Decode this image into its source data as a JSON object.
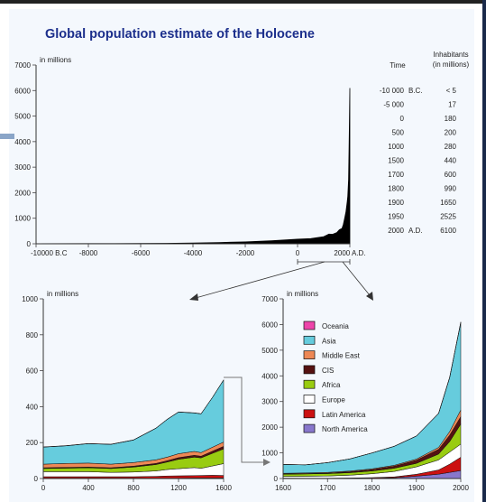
{
  "title": "Global population estimate of the Holocene",
  "table": {
    "time_header": "Time",
    "inhabitants_header": [
      "Inhabitants",
      "(in millions)"
    ],
    "rows": [
      {
        "time": "-10 000",
        "era": "B.C.",
        "value": "< 5"
      },
      {
        "time": "-5 000",
        "era": "",
        "value": "17"
      },
      {
        "time": "0",
        "era": "",
        "value": "180"
      },
      {
        "time": "500",
        "era": "",
        "value": "200"
      },
      {
        "time": "1000",
        "era": "",
        "value": "280"
      },
      {
        "time": "1500",
        "era": "",
        "value": "440"
      },
      {
        "time": "1700",
        "era": "",
        "value": "600"
      },
      {
        "time": "1800",
        "era": "",
        "value": "990"
      },
      {
        "time": "1900",
        "era": "",
        "value": "1650"
      },
      {
        "time": "1950",
        "era": "",
        "value": "2525"
      },
      {
        "time": "2000",
        "era": "A.D.",
        "value": "6100"
      }
    ]
  },
  "chart_data": [
    {
      "type": "area",
      "ylabel": "in millions",
      "ylim": [
        0,
        7000
      ],
      "xlim": [
        -10000,
        2000
      ],
      "yticks": [
        "0",
        "1000",
        "2000",
        "3000",
        "4000",
        "5000",
        "6000",
        "7000"
      ],
      "xticks": [
        "-10000 B.C",
        "-8000",
        "-6000",
        "-4000",
        "-2000",
        "0",
        "2000 A.D."
      ],
      "tick_values_x": [
        -10000,
        -8000,
        -6000,
        -4000,
        -2000,
        0,
        2000
      ],
      "tick_values_y": [
        0,
        1000,
        2000,
        3000,
        4000,
        5000,
        6000,
        7000
      ],
      "color": "#000000",
      "x": [
        -10000,
        -8000,
        -6000,
        -5000,
        -4000,
        -3000,
        -2000,
        -1000,
        0,
        500,
        1000,
        1200,
        1340,
        1500,
        1600,
        1700,
        1750,
        1800,
        1850,
        1900,
        1920,
        1940,
        1950,
        1960,
        1970,
        1980,
        1990,
        2000
      ],
      "values": [
        5,
        8,
        12,
        17,
        30,
        50,
        75,
        120,
        180,
        200,
        280,
        380,
        370,
        440,
        550,
        600,
        760,
        990,
        1260,
        1650,
        1860,
        2300,
        2525,
        3000,
        3700,
        4450,
        5300,
        6100
      ]
    },
    {
      "type": "area",
      "stacked": true,
      "ylabel": "in millions",
      "ylim": [
        0,
        1000
      ],
      "xlim": [
        0,
        1600
      ],
      "yticks": [
        "0",
        "200",
        "400",
        "600",
        "800",
        "1000"
      ],
      "xticks": [
        "0",
        "400",
        "800",
        "1200",
        "1600"
      ],
      "tick_values_x": [
        0,
        400,
        800,
        1200,
        1600
      ],
      "tick_values_y": [
        0,
        200,
        400,
        600,
        800,
        1000
      ],
      "x": [
        0,
        200,
        400,
        600,
        800,
        1000,
        1100,
        1200,
        1340,
        1400,
        1500,
        1600
      ],
      "series": [
        {
          "name": "North America",
          "color": "#8877cc",
          "values": [
            2,
            2,
            2,
            2,
            2,
            2,
            2,
            2,
            3,
            3,
            3,
            3
          ]
        },
        {
          "name": "Latin America",
          "color": "#cc1111",
          "values": [
            8,
            8,
            8,
            8,
            8,
            10,
            12,
            13,
            13,
            14,
            15,
            14
          ]
        },
        {
          "name": "Europe",
          "color": "#ffffff",
          "values": [
            28,
            28,
            28,
            24,
            26,
            30,
            36,
            40,
            45,
            40,
            52,
            66
          ]
        },
        {
          "name": "Africa",
          "color": "#99cc11",
          "values": [
            18,
            20,
            22,
            22,
            28,
            36,
            42,
            52,
            58,
            58,
            70,
            82
          ]
        },
        {
          "name": "CIS",
          "color": "#551111",
          "values": [
            4,
            4,
            4,
            4,
            5,
            6,
            7,
            9,
            10,
            9,
            12,
            14
          ]
        },
        {
          "name": "Middle East",
          "color": "#ee8855",
          "values": [
            20,
            22,
            22,
            20,
            20,
            20,
            20,
            22,
            22,
            20,
            22,
            24
          ]
        },
        {
          "name": "Asia",
          "color": "#66ccdd",
          "values": [
            95,
            98,
            108,
            110,
            125,
            176,
            210,
            232,
            214,
            216,
            276,
            345
          ]
        },
        {
          "name": "Oceania",
          "color": "#ee44aa",
          "values": [
            1,
            1,
            1,
            1,
            1,
            1,
            1,
            1,
            1,
            1,
            1,
            1
          ]
        }
      ]
    },
    {
      "type": "area",
      "stacked": true,
      "ylabel": "in millions",
      "ylim": [
        0,
        7000
      ],
      "xlim": [
        1600,
        2000
      ],
      "yticks": [
        "0",
        "1000",
        "2000",
        "3000",
        "4000",
        "5000",
        "6000",
        "7000"
      ],
      "xticks": [
        "1600",
        "1700",
        "1800",
        "1900",
        "2000"
      ],
      "tick_values_x": [
        1600,
        1700,
        1800,
        1900,
        2000
      ],
      "tick_values_y": [
        0,
        1000,
        2000,
        3000,
        4000,
        5000,
        6000,
        7000
      ],
      "x": [
        1600,
        1650,
        1700,
        1750,
        1800,
        1850,
        1900,
        1950,
        1975,
        2000
      ],
      "series": [
        {
          "name": "North America",
          "color": "#8877cc",
          "values": [
            3,
            3,
            3,
            4,
            10,
            30,
            90,
            170,
            240,
            310
          ]
        },
        {
          "name": "Latin America",
          "color": "#cc1111",
          "values": [
            14,
            12,
            12,
            16,
            25,
            35,
            75,
            165,
            320,
            520
          ]
        },
        {
          "name": "Europe",
          "color": "#ffffff",
          "values": [
            68,
            74,
            82,
            110,
            150,
            210,
            290,
            390,
            470,
            510
          ]
        },
        {
          "name": "Africa",
          "color": "#99cc11",
          "values": [
            82,
            90,
            95,
            100,
            110,
            125,
            135,
            230,
            410,
            780
          ]
        },
        {
          "name": "CIS",
          "color": "#551111",
          "values": [
            12,
            14,
            20,
            35,
            50,
            80,
            125,
            180,
            250,
            290
          ]
        },
        {
          "name": "Middle East",
          "color": "#ee8855",
          "values": [
            24,
            24,
            26,
            28,
            30,
            34,
            40,
            75,
            140,
            260
          ]
        },
        {
          "name": "Asia",
          "color": "#66ccdd",
          "values": [
            345,
            315,
            380,
            470,
            620,
            740,
            900,
            1320,
            2100,
            3400
          ]
        },
        {
          "name": "Oceania",
          "color": "#ee44aa",
          "values": [
            2,
            2,
            2,
            2,
            2,
            2,
            6,
            13,
            21,
            30
          ]
        }
      ]
    }
  ],
  "legend": {
    "items": [
      {
        "label": "Oceania",
        "color": "#ee44aa"
      },
      {
        "label": "Asia",
        "color": "#66ccdd"
      },
      {
        "label": "Middle East",
        "color": "#ee8855"
      },
      {
        "label": "CIS",
        "color": "#551111"
      },
      {
        "label": "Africa",
        "color": "#99cc11"
      },
      {
        "label": "Europe",
        "color": "#ffffff"
      },
      {
        "label": "Latin America",
        "color": "#cc1111"
      },
      {
        "label": "North America",
        "color": "#8877cc"
      }
    ]
  }
}
